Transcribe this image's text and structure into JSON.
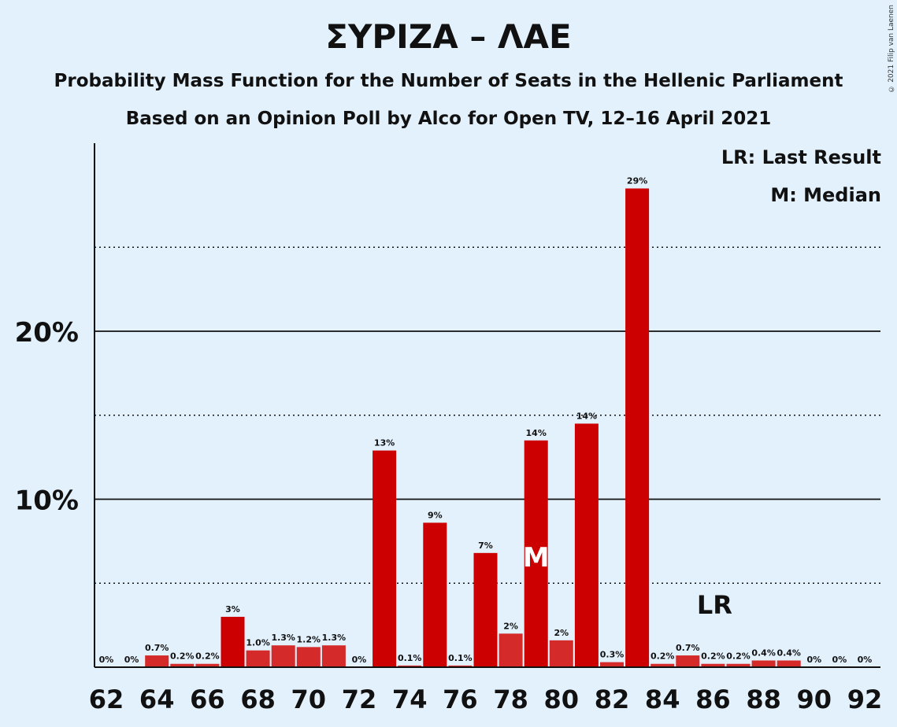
{
  "header": {
    "title": "ΣΥΡΙΖΑ – ΛΑΕ",
    "subtitle1": "Probability Mass Function for the Number of Seats in the Hellenic Parliament",
    "subtitle2": "Based on an Opinion Poll by Alco for Open TV, 12–16 April 2021",
    "copyright": "© 2021 Filip van Laenen"
  },
  "legend": {
    "last_result": "LR: Last Result",
    "median": "M: Median"
  },
  "chart_data": {
    "type": "bar",
    "x": [
      62,
      63,
      64,
      65,
      66,
      67,
      68,
      69,
      70,
      71,
      72,
      73,
      74,
      75,
      76,
      77,
      78,
      79,
      80,
      81,
      82,
      83,
      84,
      85,
      86,
      87,
      88,
      89,
      90,
      91,
      92
    ],
    "values": [
      0,
      0,
      0.7,
      0.2,
      0.2,
      3,
      1.0,
      1.3,
      1.2,
      1.3,
      0,
      12.9,
      0.1,
      8.6,
      0.1,
      6.8,
      2.0,
      13.5,
      1.6,
      14.5,
      0.3,
      28.5,
      0.2,
      0.7,
      0.2,
      0.2,
      0.4,
      0.4,
      0,
      0,
      0
    ],
    "labels": [
      "0%",
      "0%",
      "0.7%",
      "0.2%",
      "0.2%",
      "3%",
      "1.0%",
      "1.3%",
      "1.2%",
      "1.3%",
      "0%",
      "13%",
      "0.1%",
      "9%",
      "0.1%",
      "7%",
      "2%",
      "14%",
      "2%",
      "14%",
      "0.3%",
      "29%",
      "0.2%",
      "0.7%",
      "0.2%",
      "0.2%",
      "0.4%",
      "0.4%",
      "0%",
      "0%",
      "0%"
    ],
    "x_tick_labels": [
      "62",
      "64",
      "66",
      "68",
      "70",
      "72",
      "74",
      "76",
      "78",
      "80",
      "82",
      "84",
      "86",
      "88",
      "90",
      "92"
    ],
    "y_tick_labels": [
      {
        "value": 10,
        "label": "10%"
      },
      {
        "value": 20,
        "label": "20%"
      }
    ],
    "ylim": [
      0,
      31
    ],
    "median_seat": 79,
    "median_marker": "M",
    "last_result_seat": 86,
    "last_result_marker": "LR",
    "colors": {
      "bar_major": "#cc0000",
      "bar_minor": "#d42a2a",
      "background": "#e3f1fd"
    }
  }
}
